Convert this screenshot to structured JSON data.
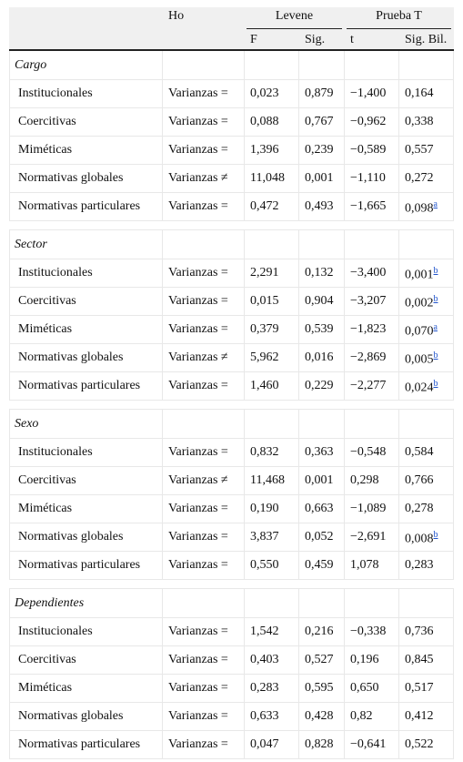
{
  "header": {
    "ho": "Ho",
    "levene": "Levene",
    "prueba_t": "Prueba T",
    "f": "F",
    "sig": "Sig.",
    "t": "t",
    "sig_bil": "Sig. Bil."
  },
  "groups": [
    {
      "title": "Cargo",
      "rows": [
        {
          "label": "Institucionales",
          "ho": "Varianzas =",
          "f": "0,023",
          "sig": "0,879",
          "t": "−1,400",
          "sig_bil": "0,164"
        },
        {
          "label": "Coercitivas",
          "ho": "Varianzas =",
          "f": "0,088",
          "sig": "0,767",
          "t": "−0,962",
          "sig_bil": "0,338"
        },
        {
          "label": "Miméticas",
          "ho": "Varianzas =",
          "f": "1,396",
          "sig": "0,239",
          "t": "−0,589",
          "sig_bil": "0,557"
        },
        {
          "label": "Normativas globales",
          "ho": "Varianzas ≠",
          "f": "11,048",
          "sig": "0,001",
          "t": "−1,110",
          "sig_bil": "0,272"
        },
        {
          "label": "Normativas particulares",
          "ho": "Varianzas =",
          "f": "0,472",
          "sig": "0,493",
          "t": "−1,665",
          "sig_bil": "0,098",
          "note": "a"
        }
      ]
    },
    {
      "title": "Sector",
      "rows": [
        {
          "label": "Institucionales",
          "ho": "Varianzas =",
          "f": "2,291",
          "sig": "0,132",
          "t": "−3,400",
          "sig_bil": "0,001",
          "note": "b"
        },
        {
          "label": "Coercitivas",
          "ho": "Varianzas =",
          "f": "0,015",
          "sig": "0,904",
          "t": "−3,207",
          "sig_bil": "0,002",
          "note": "b"
        },
        {
          "label": "Miméticas",
          "ho": "Varianzas =",
          "f": "0,379",
          "sig": "0,539",
          "t": "−1,823",
          "sig_bil": "0,070",
          "note": "a"
        },
        {
          "label": "Normativas globales",
          "ho": "Varianzas ≠",
          "f": "5,962",
          "sig": "0,016",
          "t": "−2,869",
          "sig_bil": "0,005",
          "note": "b"
        },
        {
          "label": "Normativas particulares",
          "ho": "Varianzas =",
          "f": "1,460",
          "sig": "0,229",
          "t": "−2,277",
          "sig_bil": "0,024",
          "note": "b"
        }
      ]
    },
    {
      "title": "Sexo",
      "rows": [
        {
          "label": "Institucionales",
          "ho": "Varianzas =",
          "f": "0,832",
          "sig": "0,363",
          "t": "−0,548",
          "sig_bil": "0,584"
        },
        {
          "label": "Coercitivas",
          "ho": "Varianzas ≠",
          "f": "11,468",
          "sig": "0,001",
          "t": "0,298",
          "sig_bil": "0,766"
        },
        {
          "label": "Miméticas",
          "ho": "Varianzas =",
          "f": "0,190",
          "sig": "0,663",
          "t": "−1,089",
          "sig_bil": "0,278"
        },
        {
          "label": "Normativas globales",
          "ho": "Varianzas =",
          "f": "3,837",
          "sig": "0,052",
          "t": "−2,691",
          "sig_bil": "0,008",
          "note": "b"
        },
        {
          "label": "Normativas particulares",
          "ho": "Varianzas =",
          "f": "0,550",
          "sig": "0,459",
          "t": "1,078",
          "sig_bil": "0,283"
        }
      ]
    },
    {
      "title": "Dependientes",
      "rows": [
        {
          "label": "Institucionales",
          "ho": "Varianzas =",
          "f": "1,542",
          "sig": "0,216",
          "t": "−0,338",
          "sig_bil": "0,736"
        },
        {
          "label": "Coercitivas",
          "ho": "Varianzas =",
          "f": "0,403",
          "sig": "0,527",
          "t": "0,196",
          "sig_bil": "0,845"
        },
        {
          "label": "Miméticas",
          "ho": "Varianzas =",
          "f": "0,283",
          "sig": "0,595",
          "t": "0,650",
          "sig_bil": "0,517"
        },
        {
          "label": "Normativas globales",
          "ho": "Varianzas =",
          "f": "0,633",
          "sig": "0,428",
          "t": "0,82",
          "sig_bil": "0,412"
        },
        {
          "label": "Normativas particulares",
          "ho": "Varianzas =",
          "f": "0,047",
          "sig": "0,828",
          "t": "−0,641",
          "sig_bil": "0,522"
        }
      ]
    }
  ]
}
